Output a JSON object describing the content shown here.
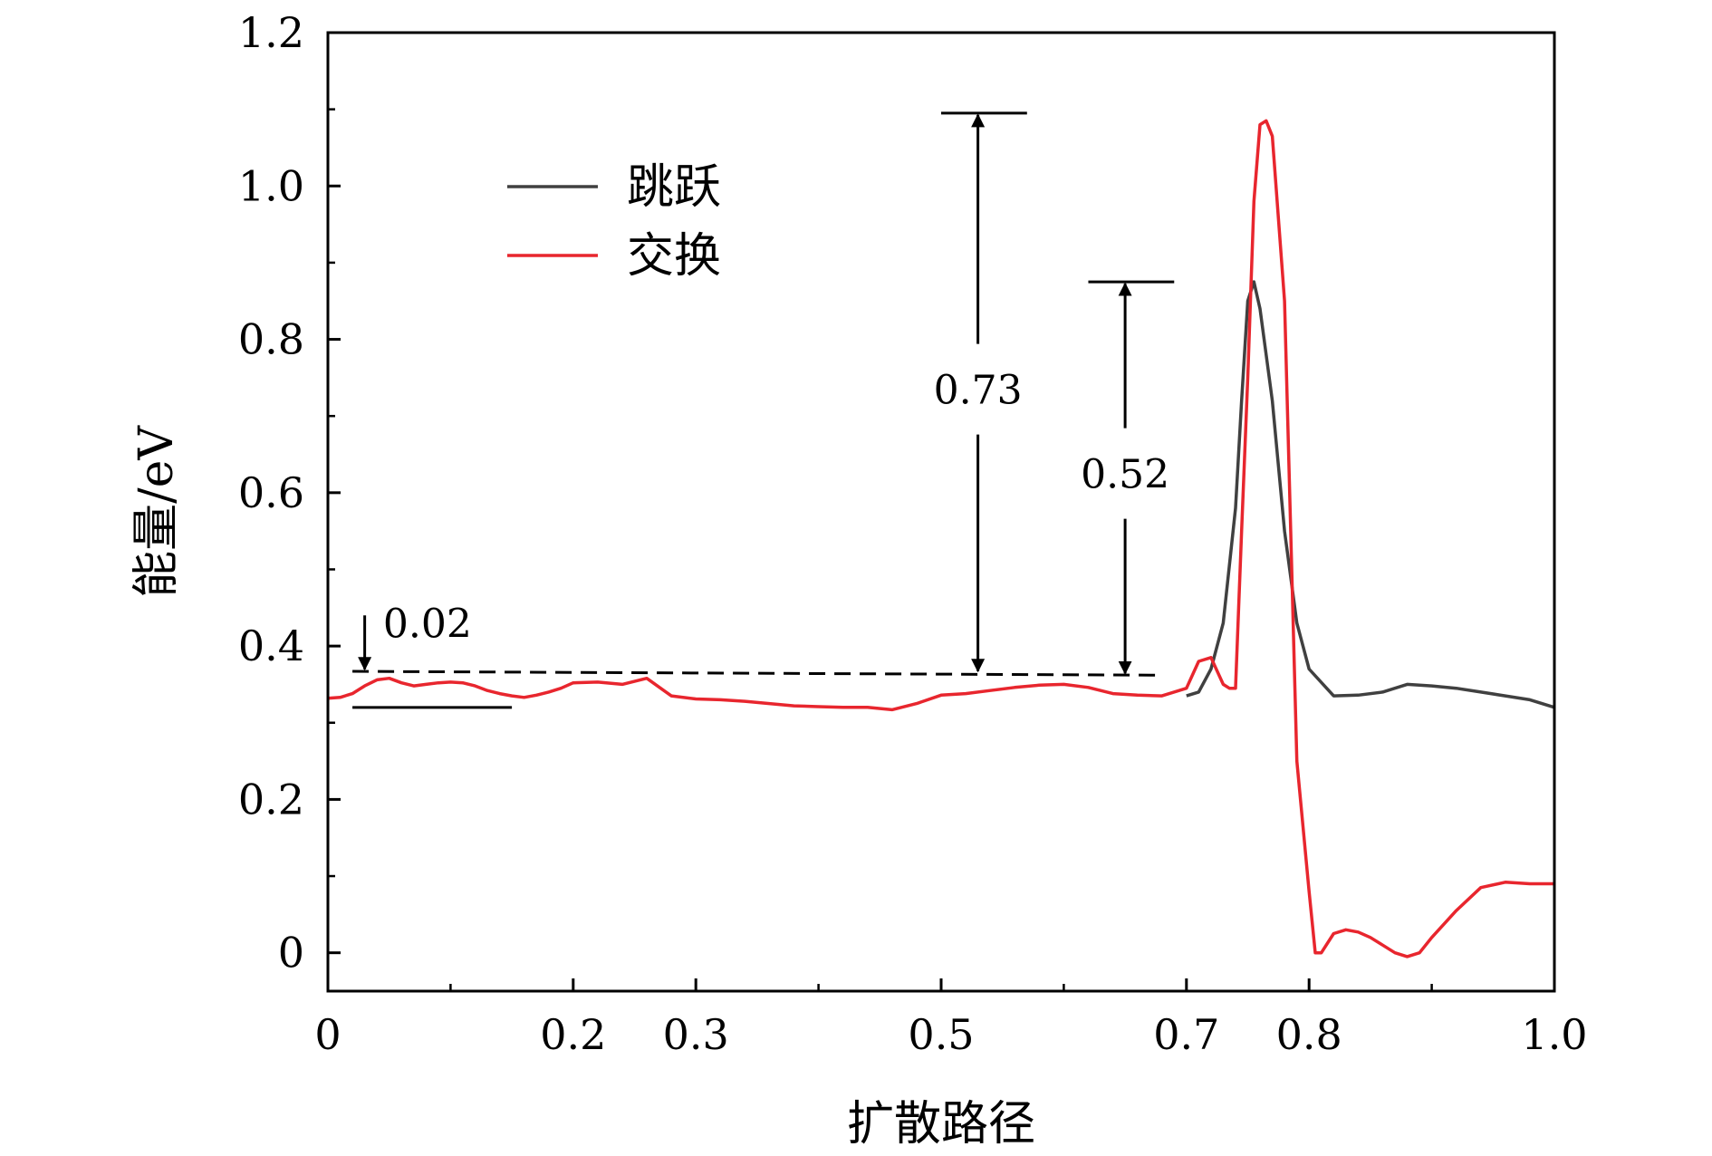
{
  "chart_data": {
    "type": "line",
    "title": "",
    "xlabel": "扩散路径",
    "ylabel": "能量/eV",
    "xlim": [
      0,
      1.0
    ],
    "ylim": [
      -0.05,
      1.2
    ],
    "xticks": [
      0,
      0.2,
      0.3,
      0.5,
      0.7,
      0.8,
      1.0
    ],
    "xtick_labels": [
      "0",
      "0.2",
      "0.3",
      "0.5",
      "0.7",
      "0.8",
      "1.0"
    ],
    "yticks": [
      0,
      0.2,
      0.4,
      0.6,
      0.8,
      1.0,
      1.2
    ],
    "ytick_labels": [
      "0",
      "0.2",
      "0.4",
      "0.6",
      "0.8",
      "1.0",
      "1.2"
    ],
    "legend_position": "top-left",
    "series": [
      {
        "name": "跳跃",
        "color": "#404040",
        "x": [
          0.7,
          0.71,
          0.72,
          0.73,
          0.74,
          0.745,
          0.75,
          0.755,
          0.76,
          0.77,
          0.78,
          0.79,
          0.8,
          0.82,
          0.84,
          0.86,
          0.88,
          0.9,
          0.92,
          0.94,
          0.96,
          0.98,
          1.0
        ],
        "y": [
          0.335,
          0.34,
          0.37,
          0.43,
          0.58,
          0.72,
          0.85,
          0.875,
          0.84,
          0.72,
          0.55,
          0.43,
          0.37,
          0.335,
          0.336,
          0.34,
          0.35,
          0.348,
          0.345,
          0.34,
          0.335,
          0.33,
          0.32
        ]
      },
      {
        "name": "交换",
        "color": "#e8262e",
        "x": [
          0,
          0.01,
          0.02,
          0.03,
          0.04,
          0.05,
          0.06,
          0.07,
          0.08,
          0.09,
          0.1,
          0.11,
          0.12,
          0.13,
          0.14,
          0.15,
          0.16,
          0.17,
          0.18,
          0.19,
          0.2,
          0.22,
          0.24,
          0.26,
          0.28,
          0.3,
          0.32,
          0.34,
          0.36,
          0.38,
          0.4,
          0.42,
          0.44,
          0.46,
          0.48,
          0.5,
          0.52,
          0.54,
          0.56,
          0.58,
          0.6,
          0.62,
          0.64,
          0.66,
          0.68,
          0.7,
          0.71,
          0.72,
          0.73,
          0.735,
          0.74,
          0.745,
          0.75,
          0.755,
          0.76,
          0.765,
          0.77,
          0.78,
          0.785,
          0.79,
          0.8,
          0.805,
          0.81,
          0.82,
          0.83,
          0.84,
          0.85,
          0.86,
          0.87,
          0.88,
          0.89,
          0.9,
          0.92,
          0.94,
          0.96,
          0.98,
          1.0
        ],
        "y": [
          0.332,
          0.333,
          0.338,
          0.348,
          0.356,
          0.358,
          0.352,
          0.348,
          0.35,
          0.352,
          0.353,
          0.352,
          0.348,
          0.342,
          0.338,
          0.335,
          0.333,
          0.336,
          0.34,
          0.345,
          0.352,
          0.353,
          0.35,
          0.358,
          0.335,
          0.331,
          0.33,
          0.328,
          0.325,
          0.322,
          0.321,
          0.32,
          0.32,
          0.317,
          0.325,
          0.336,
          0.338,
          0.342,
          0.346,
          0.349,
          0.35,
          0.346,
          0.338,
          0.336,
          0.335,
          0.345,
          0.38,
          0.385,
          0.35,
          0.345,
          0.345,
          0.55,
          0.75,
          0.98,
          1.08,
          1.085,
          1.065,
          0.85,
          0.55,
          0.25,
          0.08,
          0.0,
          0.0,
          0.025,
          0.03,
          0.027,
          0.02,
          0.01,
          0.0,
          -0.005,
          0.0,
          0.02,
          0.055,
          0.085,
          0.092,
          0.09,
          0.09
        ]
      }
    ],
    "reference_lines": [
      {
        "name": "dashed-level",
        "style": "dashed",
        "x": [
          0.02,
          0.68
        ],
        "y": [
          0.367,
          0.362
        ]
      },
      {
        "name": "base-level",
        "style": "solid",
        "x": [
          0.02,
          0.15
        ],
        "y": [
          0.32,
          0.32
        ]
      },
      {
        "name": "peak-cap-0.73",
        "style": "solid",
        "x": [
          0.5,
          0.57
        ],
        "y": [
          1.095,
          1.095
        ]
      },
      {
        "name": "peak-cap-0.52",
        "style": "solid",
        "x": [
          0.62,
          0.69
        ],
        "y": [
          0.875,
          0.875
        ]
      }
    ],
    "annotations": [
      {
        "text": "0.73",
        "x": 0.53,
        "y_from": 0.365,
        "y_to": 1.095,
        "label_y": 0.735
      },
      {
        "text": "0.52",
        "x": 0.65,
        "y_from": 0.362,
        "y_to": 0.875,
        "label_y": 0.625
      },
      {
        "text": "0.02",
        "arrow_x": 0.03,
        "arrow_from": 0.44,
        "arrow_to": 0.365,
        "label_x": 0.045,
        "label_y": 0.43
      }
    ]
  }
}
